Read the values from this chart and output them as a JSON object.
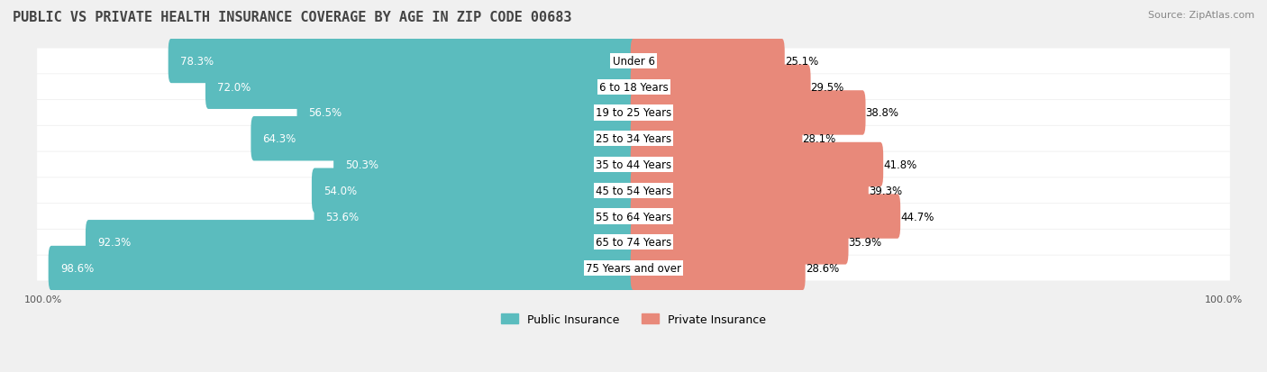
{
  "title": "PUBLIC VS PRIVATE HEALTH INSURANCE COVERAGE BY AGE IN ZIP CODE 00683",
  "source": "Source: ZipAtlas.com",
  "categories": [
    "Under 6",
    "6 to 18 Years",
    "19 to 25 Years",
    "25 to 34 Years",
    "35 to 44 Years",
    "45 to 54 Years",
    "55 to 64 Years",
    "65 to 74 Years",
    "75 Years and over"
  ],
  "public_values": [
    78.3,
    72.0,
    56.5,
    64.3,
    50.3,
    54.0,
    53.6,
    92.3,
    98.6
  ],
  "private_values": [
    25.1,
    29.5,
    38.8,
    28.1,
    41.8,
    39.3,
    44.7,
    35.9,
    28.6
  ],
  "public_color": "#5bbcbe",
  "private_color": "#e8897a",
  "background_color": "#f0f0f0",
  "bar_background": "#ffffff",
  "title_fontsize": 11,
  "source_fontsize": 8,
  "label_fontsize": 8.5,
  "legend_fontsize": 9,
  "axis_label_fontsize": 8
}
